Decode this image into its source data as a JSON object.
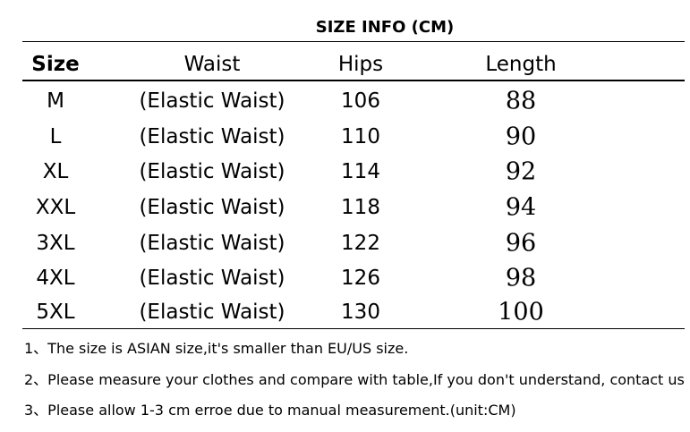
{
  "table": {
    "title": "SIZE INFO  (CM)",
    "header": [
      "Size",
      "Waist",
      "Hips",
      "Length"
    ],
    "rows": [
      [
        "M",
        "(Elastic Waist)",
        106,
        88
      ],
      [
        "L",
        "(Elastic Waist)",
        110,
        90
      ],
      [
        "XL",
        "(Elastic Waist)",
        114,
        92
      ],
      [
        "XXL",
        "(Elastic Waist)",
        118,
        94
      ],
      [
        "3XL",
        "(Elastic Waist)",
        122,
        96
      ],
      [
        "4XL",
        "(Elastic Waist)",
        126,
        98
      ],
      [
        "5XL",
        "(Elastic Waist)",
        130,
        100
      ]
    ]
  },
  "notes": [
    "1、The size is ASIAN size,it's smaller than EU/US size.",
    "2、Please measure your clothes and compare with table,If you don't understand, contact us",
    "3、Please allow 1-3 cm erroe due to manual measurement.(unit:CM)"
  ]
}
